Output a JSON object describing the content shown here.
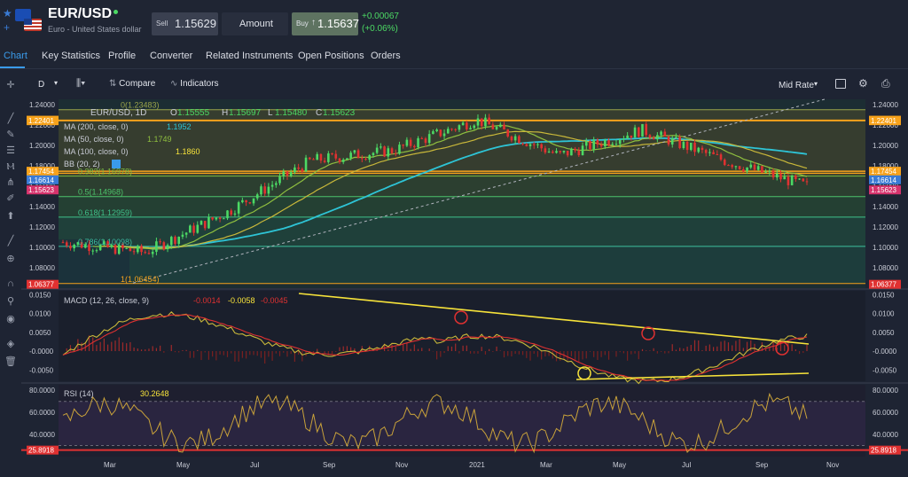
{
  "header": {
    "symbol": "EUR/USD",
    "name": "Euro - United States dollar",
    "sell_label": "Sell",
    "sell_price": "1.15629",
    "amount_label": "Amount",
    "buy_label": "Buy",
    "buy_price": "1.15637",
    "change": "+0.00067",
    "change_pct": "(+0.06%)"
  },
  "tabs": [
    "Chart",
    "Key Statistics",
    "Profile",
    "Converter",
    "Related Instruments",
    "Open Positions",
    "Orders"
  ],
  "toolbar": {
    "interval": "D",
    "compare": "Compare",
    "indicators": "Indicators",
    "rate": "Mid Rate"
  },
  "legend": {
    "title": "EUR/USD, 1D",
    "o_label": "O",
    "o": "1.15555",
    "h_label": "H",
    "h": "1.15697",
    "l_label": "L",
    "l": "1.15480",
    "c_label": "C",
    "c": "1.15623",
    "ma200": "MA (200, close, 0)",
    "ma200_val": "1.1952",
    "ma50": "MA (50, close, 0)",
    "ma50_val": "1.1749",
    "ma100": "MA (100, close, 0)",
    "ma100_val": "1.1860",
    "bb": "BB (20, 2)"
  },
  "fib": [
    {
      "label": "0(1.23483)",
      "value": 1.23483
    },
    {
      "label": "0.382(1.16978)",
      "value": 1.16978
    },
    {
      "label": "0.5(1.14968)",
      "value": 1.14968
    },
    {
      "label": "0.618(1.12959)",
      "value": 1.12959
    },
    {
      "label": "0.786(1.10098)",
      "value": 1.10098
    },
    {
      "label": "1(1.06454)",
      "value": 1.06454
    }
  ],
  "price_axis": [
    "1.24000",
    "1.22000",
    "1.20000",
    "1.18000",
    "1.16000",
    "1.14000",
    "1.12000",
    "1.10000",
    "1.08000"
  ],
  "price_tags": [
    {
      "text": "1.22453",
      "color": "#f7a21b"
    },
    {
      "text": "1.22401",
      "color": "#f7a21b"
    },
    {
      "text": "1.17454",
      "color": "#f7a21b"
    },
    {
      "text": "1.16614",
      "color": "#3a7bd5"
    },
    {
      "text": "1.15623",
      "color": "#d6336c"
    },
    {
      "text": "1.06377",
      "color": "#e03131"
    }
  ],
  "macd": {
    "label": "MACD (12, 26, close, 9)",
    "v1": "-0.0014",
    "v2": "-0.0058",
    "v3": "-0.0045",
    "axis": [
      "0.0150",
      "0.0100",
      "0.0050",
      "-0.0000",
      "-0.0050"
    ]
  },
  "rsi": {
    "label": "RSI (14)",
    "value": "30.2648",
    "axis": [
      "80.0000",
      "60.0000",
      "40.0000"
    ],
    "tag": "25.8918"
  },
  "time_axis": [
    "Mar",
    "May",
    "Jul",
    "Sep",
    "Nov",
    "2021",
    "Mar",
    "May",
    "Jul",
    "Sep",
    "Nov"
  ],
  "chart_data": {
    "type": "line",
    "title": "EUR/USD, 1D",
    "x": [
      "Mar",
      "May",
      "Jul",
      "Sep",
      "Nov",
      "2021",
      "Mar",
      "May",
      "Jul",
      "Sep"
    ],
    "series": [
      {
        "name": "EUR/USD",
        "values": [
          1.105,
          1.095,
          1.135,
          1.185,
          1.195,
          1.225,
          1.19,
          1.215,
          1.185,
          1.16
        ]
      }
    ],
    "ylim": [
      1.06,
      1.245
    ]
  }
}
